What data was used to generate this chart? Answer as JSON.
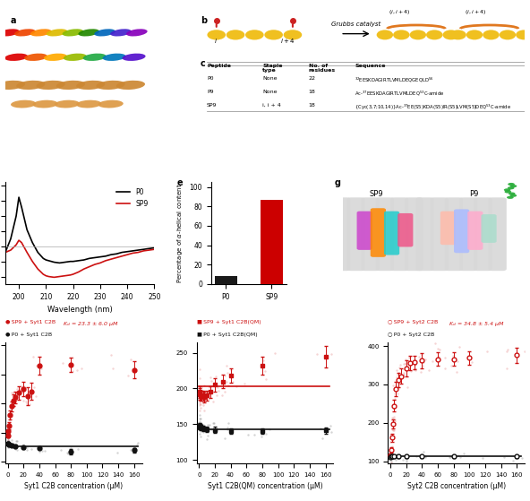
{
  "background": "#ffffff",
  "cd_wavelength": [
    195,
    197,
    199,
    200,
    201,
    203,
    205,
    207,
    209,
    210,
    211,
    213,
    215,
    217,
    219,
    220,
    222,
    224,
    226,
    228,
    230,
    232,
    234,
    236,
    238,
    240,
    242,
    244,
    246,
    248,
    250
  ],
  "cd_P0": [
    -8,
    10,
    40,
    65,
    52,
    22,
    5,
    -8,
    -16,
    -18,
    -19,
    -21,
    -22,
    -21,
    -20,
    -20,
    -19,
    -18,
    -16,
    -15,
    -14,
    -13,
    -11,
    -10,
    -8,
    -7,
    -6,
    -5,
    -4,
    -3,
    -2
  ],
  "cd_SP9": [
    -8,
    -5,
    2,
    8,
    5,
    -8,
    -20,
    -30,
    -37,
    -39,
    -40,
    -41,
    -40,
    -39,
    -38,
    -37,
    -34,
    -30,
    -27,
    -24,
    -22,
    -19,
    -17,
    -15,
    -13,
    -11,
    -9,
    -8,
    -6,
    -5,
    -4
  ],
  "bar_categories": [
    "P0",
    "SP9"
  ],
  "bar_values": [
    8,
    87
  ],
  "bar_colors": [
    "#1a1a1a",
    "#cc0000"
  ],
  "syt1_sp9_x": [
    0.5,
    1,
    2,
    3,
    5,
    7,
    10,
    14,
    20,
    25,
    30,
    40,
    80,
    160
  ],
  "syt1_sp9_y": [
    190,
    205,
    225,
    260,
    290,
    310,
    322,
    336,
    350,
    325,
    342,
    430,
    432,
    415
  ],
  "syt1_sp9_err": [
    6,
    8,
    12,
    15,
    18,
    20,
    20,
    22,
    25,
    30,
    28,
    30,
    25,
    30
  ],
  "syt1_p0_x": [
    0.5,
    1,
    2,
    5,
    10,
    20,
    40,
    80,
    160
  ],
  "syt1_p0_y": [
    163,
    162,
    160,
    158,
    155,
    150,
    148,
    135,
    140
  ],
  "syt1_p0_err": [
    5,
    5,
    5,
    5,
    5,
    5,
    5,
    8,
    8
  ],
  "syt1qm_sp9_x": [
    0.5,
    1,
    2,
    3,
    5,
    7,
    10,
    14,
    20,
    30,
    40,
    80,
    160
  ],
  "syt1qm_sp9_y": [
    195,
    192,
    190,
    190,
    190,
    188,
    190,
    195,
    205,
    210,
    218,
    232,
    245
  ],
  "syt1qm_sp9_err": [
    8,
    8,
    7,
    7,
    7,
    7,
    7,
    8,
    10,
    10,
    10,
    12,
    15
  ],
  "syt1qm_p0_x": [
    0.5,
    1,
    2,
    5,
    10,
    20,
    40,
    80,
    160
  ],
  "syt1qm_p0_y": [
    148,
    147,
    146,
    144,
    143,
    142,
    140,
    140,
    141
  ],
  "syt1qm_p0_err": [
    4,
    4,
    4,
    4,
    4,
    4,
    4,
    4,
    4
  ],
  "syt2_sp9_x": [
    0.5,
    1,
    2,
    3,
    5,
    7,
    10,
    14,
    20,
    25,
    30,
    40,
    60,
    80,
    100,
    160
  ],
  "syt2_sp9_y": [
    115,
    130,
    162,
    198,
    245,
    288,
    312,
    322,
    342,
    356,
    357,
    362,
    366,
    366,
    369,
    376
  ],
  "syt2_sp9_err": [
    5,
    8,
    10,
    12,
    15,
    18,
    18,
    20,
    20,
    18,
    18,
    20,
    18,
    18,
    18,
    20
  ],
  "syt2_p0_x": [
    0.5,
    1,
    2,
    5,
    10,
    20,
    40,
    80,
    160
  ],
  "syt2_p0_y": [
    112,
    113,
    113,
    113,
    113,
    113,
    113,
    113,
    113
  ],
  "syt2_p0_err": [
    3,
    3,
    3,
    3,
    3,
    3,
    3,
    3,
    3
  ],
  "kd_syt1": "23.3 ± 6.0",
  "kd_syt2": "34.8 ± 5.4",
  "red_color": "#cc1111",
  "black_color": "#111111"
}
